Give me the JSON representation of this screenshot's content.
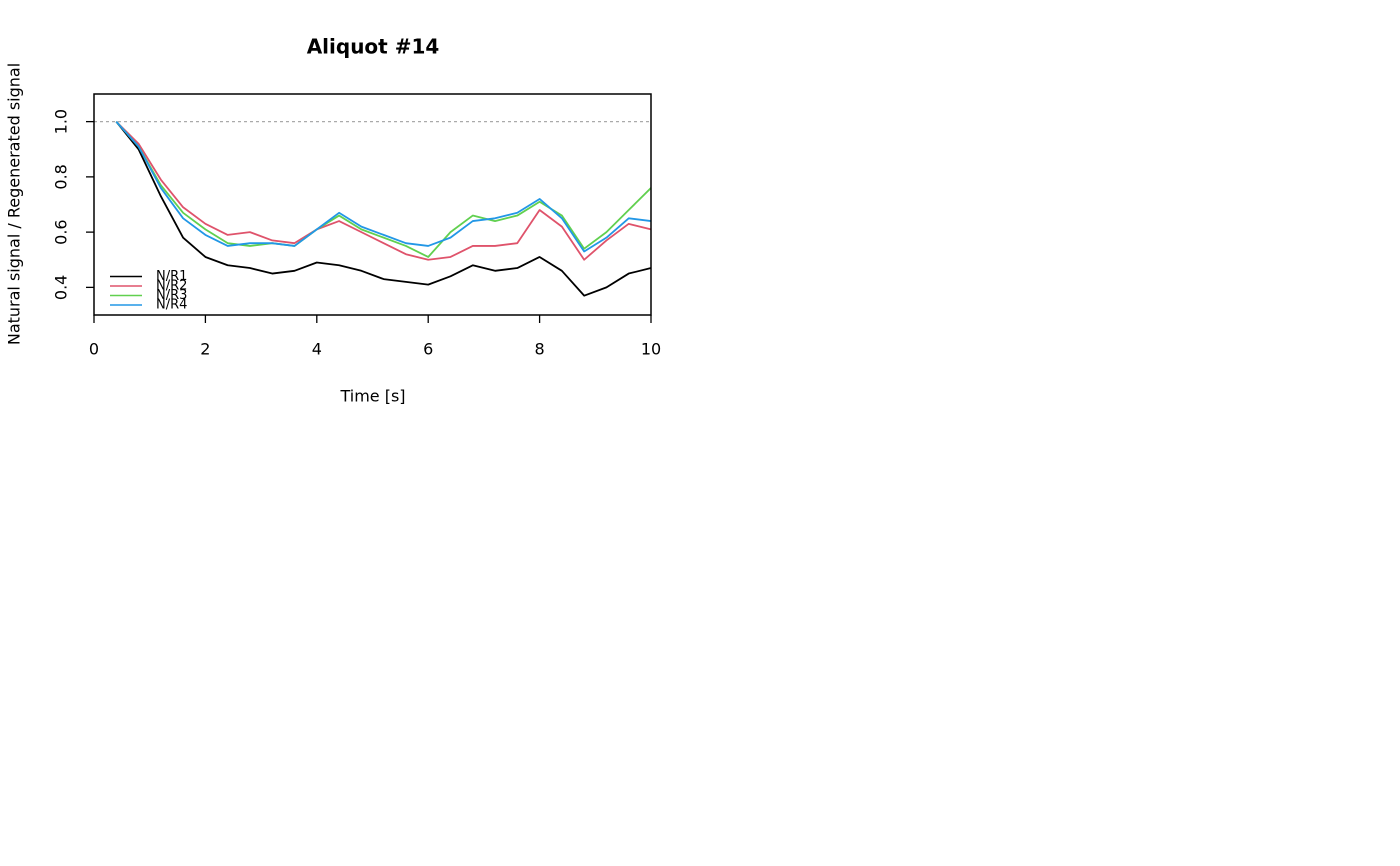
{
  "chart_data": {
    "type": "line",
    "title": "Aliquot #14",
    "xlabel": "Time [s]",
    "ylabel": "Natural signal / Regenerated signal",
    "x": [
      0.4,
      0.8,
      1.2,
      1.6,
      2.0,
      2.4,
      2.8,
      3.2,
      3.6,
      4.0,
      4.4,
      4.8,
      5.2,
      5.6,
      6.0,
      6.4,
      6.8,
      7.2,
      7.6,
      8.0,
      8.4,
      8.8,
      9.2,
      9.6,
      10.0
    ],
    "series": [
      {
        "name": "N/R1",
        "color": "#000000",
        "values": [
          1.0,
          0.9,
          0.73,
          0.58,
          0.51,
          0.48,
          0.47,
          0.45,
          0.46,
          0.49,
          0.48,
          0.46,
          0.43,
          0.42,
          0.41,
          0.44,
          0.48,
          0.46,
          0.47,
          0.51,
          0.46,
          0.37,
          0.4,
          0.45,
          0.47
        ]
      },
      {
        "name": "N/R2",
        "color": "#df536b",
        "values": [
          1.0,
          0.92,
          0.79,
          0.69,
          0.63,
          0.59,
          0.6,
          0.57,
          0.56,
          0.61,
          0.64,
          0.6,
          0.56,
          0.52,
          0.5,
          0.51,
          0.55,
          0.55,
          0.56,
          0.68,
          0.62,
          0.5,
          0.57,
          0.63,
          0.61
        ]
      },
      {
        "name": "N/R3",
        "color": "#61d04f",
        "values": [
          1.0,
          0.91,
          0.77,
          0.67,
          0.61,
          0.56,
          0.55,
          0.56,
          0.55,
          0.61,
          0.66,
          0.61,
          0.58,
          0.55,
          0.51,
          0.6,
          0.66,
          0.64,
          0.66,
          0.71,
          0.66,
          0.54,
          0.6,
          0.68,
          0.76
        ]
      },
      {
        "name": "N/R4",
        "color": "#2297e6",
        "values": [
          1.0,
          0.91,
          0.76,
          0.65,
          0.59,
          0.55,
          0.56,
          0.56,
          0.55,
          0.61,
          0.67,
          0.62,
          0.59,
          0.56,
          0.55,
          0.58,
          0.64,
          0.65,
          0.67,
          0.72,
          0.65,
          0.53,
          0.58,
          0.65,
          0.64
        ]
      }
    ],
    "xlim": [
      0,
      10
    ],
    "xticks": [
      0,
      2,
      4,
      6,
      8,
      10
    ],
    "ylim": [
      0.3,
      1.1
    ],
    "yticks": [
      0.4,
      0.6,
      0.8,
      {
        "value": 1.0,
        "label": "1.0"
      }
    ],
    "hline": 1.0,
    "legend": "bottomleft"
  }
}
